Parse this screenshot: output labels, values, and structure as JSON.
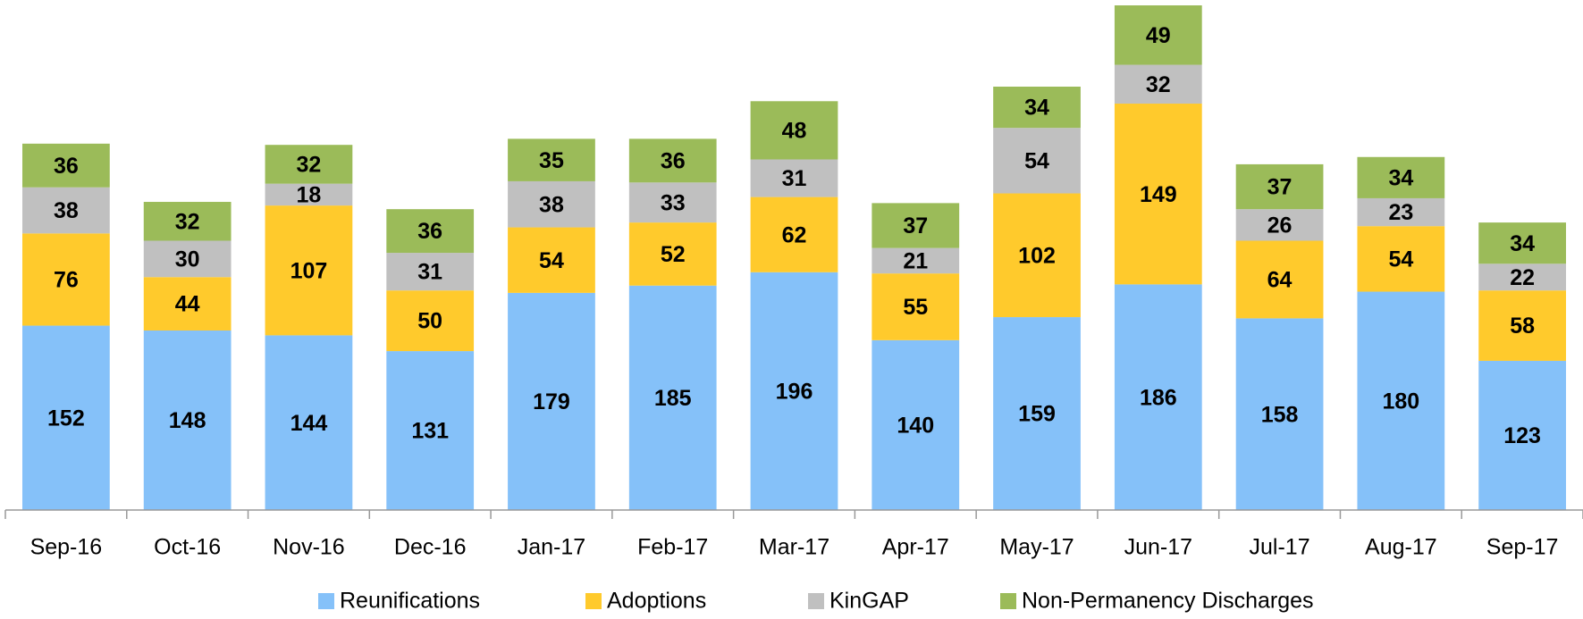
{
  "chart_data": {
    "type": "stacked_bar",
    "categories": [
      "Sep-16",
      "Oct-16",
      "Nov-16",
      "Dec-16",
      "Jan-17",
      "Feb-17",
      "Mar-17",
      "Apr-17",
      "May-17",
      "Jun-17",
      "Jul-17",
      "Aug-17",
      "Sep-17"
    ],
    "series": [
      {
        "name": "Reunifications",
        "color": "#85c1f9",
        "values": [
          152,
          148,
          144,
          131,
          179,
          185,
          196,
          140,
          159,
          186,
          158,
          180,
          123
        ]
      },
      {
        "name": "Adoptions",
        "color": "#ffca2c",
        "values": [
          76,
          44,
          107,
          50,
          54,
          52,
          62,
          55,
          102,
          149,
          64,
          54,
          58
        ]
      },
      {
        "name": "KinGAP",
        "color": "#c0c0c0",
        "values": [
          38,
          30,
          18,
          31,
          38,
          33,
          31,
          21,
          54,
          32,
          26,
          23,
          22
        ]
      },
      {
        "name": "Non-Permanency Discharges",
        "color": "#9bbb59",
        "values": [
          36,
          32,
          32,
          36,
          35,
          36,
          48,
          37,
          34,
          49,
          37,
          34,
          34
        ]
      }
    ],
    "legend": "bottom"
  }
}
